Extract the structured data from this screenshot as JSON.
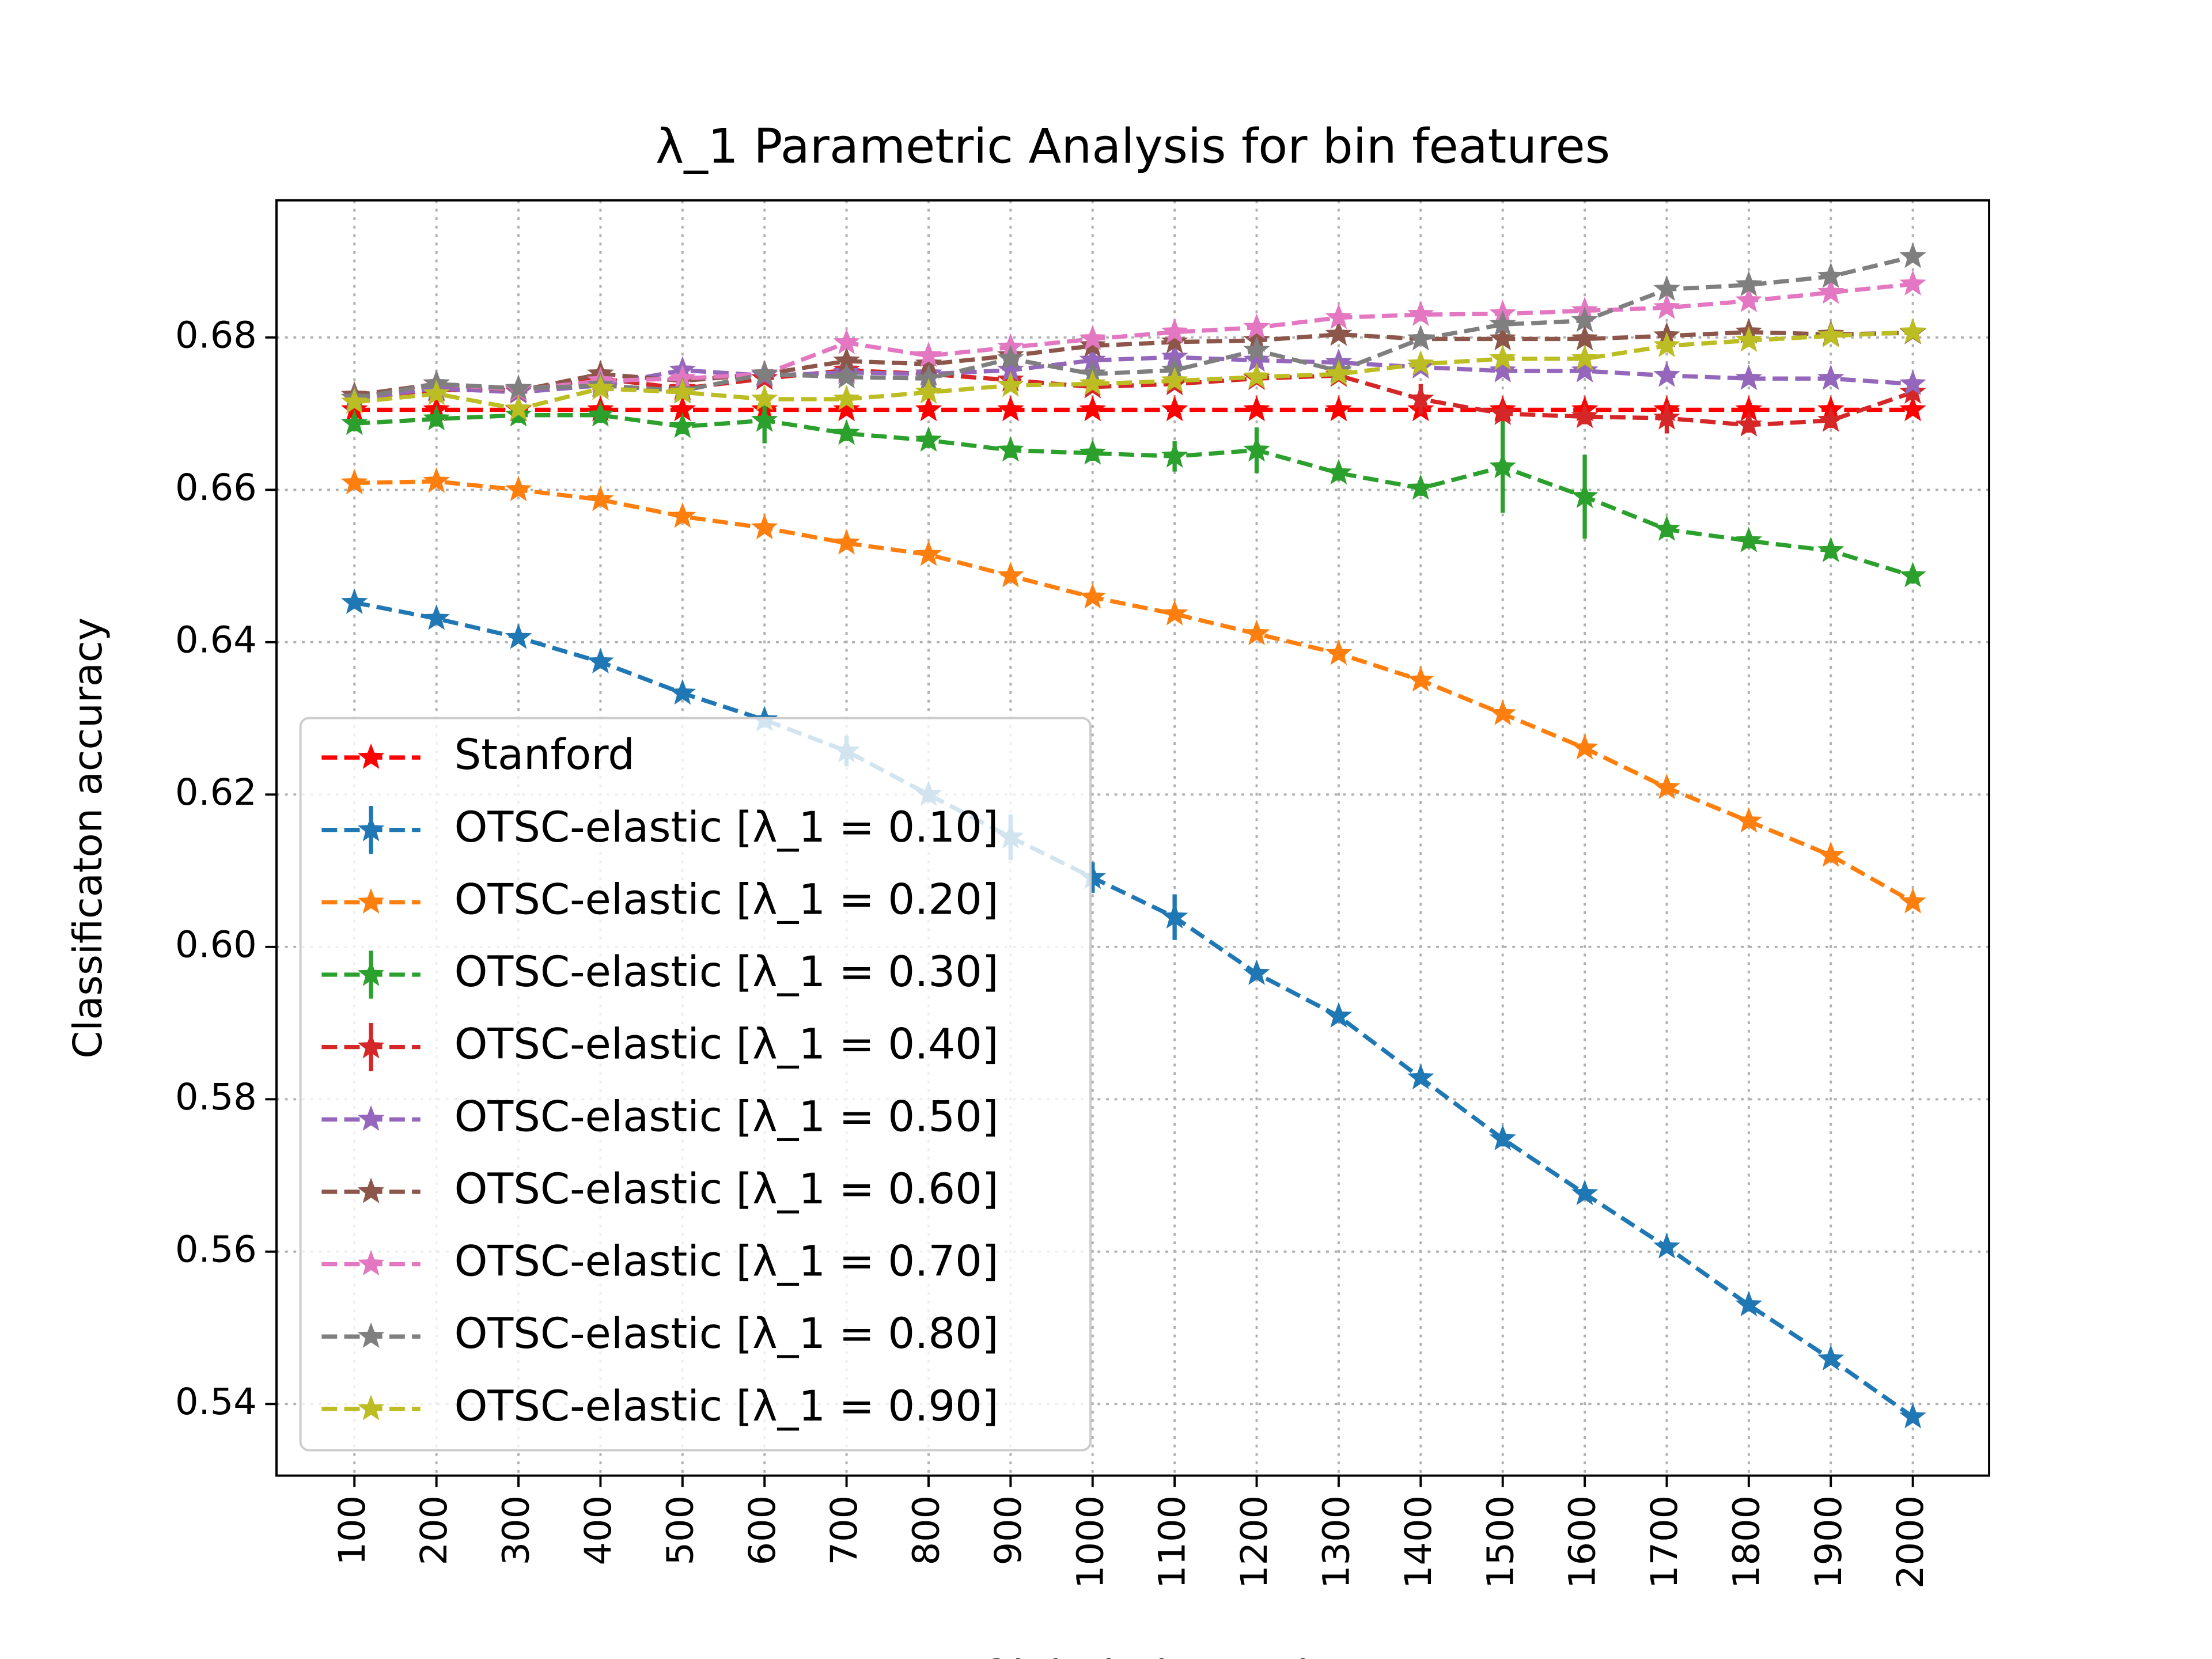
{
  "chart_data": {
    "type": "line",
    "title": "λ_1 Parametric Analysis for bin features",
    "x_label": "# of labeled samples",
    "y_label": "Classificaton accuracy",
    "x": [
      100,
      200,
      300,
      400,
      500,
      600,
      700,
      800,
      900,
      1000,
      1100,
      1200,
      1300,
      1400,
      1500,
      1600,
      1700,
      1800,
      1900,
      2000
    ],
    "xlim": [
      5,
      2093
    ],
    "xticks": [
      100,
      200,
      300,
      400,
      500,
      600,
      700,
      800,
      900,
      1000,
      1100,
      1200,
      1300,
      1400,
      1500,
      1600,
      1700,
      1800,
      1900,
      2000
    ],
    "ylim": [
      0.5306,
      0.698
    ],
    "yticks": [
      {
        "value": 0.54,
        "label": "0.54"
      },
      {
        "value": 0.56,
        "label": "0.56"
      },
      {
        "value": 0.58,
        "label": "0.58"
      },
      {
        "value": 0.6,
        "label": "0.60"
      },
      {
        "value": 0.62,
        "label": "0.62"
      },
      {
        "value": 0.64,
        "label": "0.64"
      },
      {
        "value": 0.66,
        "label": "0.66"
      },
      {
        "value": 0.68,
        "label": "0.68"
      }
    ],
    "grid": true,
    "legend": "lower left",
    "series": [
      {
        "name": "Stanford",
        "color": "#ff0000",
        "values": [
          0.6705,
          0.6705,
          0.6705,
          0.6705,
          0.6705,
          0.6705,
          0.6705,
          0.6705,
          0.6705,
          0.6705,
          0.6705,
          0.6705,
          0.6705,
          0.6705,
          0.6705,
          0.6705,
          0.6705,
          0.6705,
          0.6705,
          0.6705
        ]
      },
      {
        "name": "OTSC-elastic [λ_1 = 0.10]",
        "color": "#1f77b4",
        "values": [
          0.6452,
          0.6431,
          0.6406,
          0.6374,
          0.6333,
          0.6298,
          0.6257,
          0.62,
          0.6144,
          0.6091,
          0.6039,
          0.5965,
          0.5909,
          0.5828,
          0.5748,
          0.5676,
          0.5606,
          0.553,
          0.5459,
          0.5383
        ],
        "errors": [
          0.0005,
          0.0005,
          0.0005,
          0.0005,
          0.0005,
          0.001,
          0.002,
          0.001,
          0.003,
          0.002,
          0.003,
          0.0005,
          0.0005,
          0.0005,
          0.001,
          0.0005,
          0.0005,
          0.0005,
          0.0005,
          0.0005
        ]
      },
      {
        "name": "OTSC-elastic [λ_1 = 0.20]",
        "color": "#ff7f0e",
        "values": [
          0.6609,
          0.6611,
          0.66,
          0.6587,
          0.6565,
          0.655,
          0.653,
          0.6515,
          0.6487,
          0.6459,
          0.6437,
          0.6411,
          0.6385,
          0.635,
          0.6306,
          0.6261,
          0.6209,
          0.6165,
          0.612,
          0.6059
        ]
      },
      {
        "name": "OTSC-elastic [λ_1 = 0.30]",
        "color": "#2ca02c",
        "values": [
          0.6687,
          0.6693,
          0.6698,
          0.6698,
          0.6683,
          0.6691,
          0.6674,
          0.6665,
          0.6652,
          0.6648,
          0.6644,
          0.6652,
          0.6622,
          0.6602,
          0.663,
          0.6591,
          0.6548,
          0.6533,
          0.652,
          0.6487
        ],
        "errors": [
          0.001,
          0.001,
          0.001,
          0.001,
          0.001,
          0.003,
          0.001,
          0.001,
          0.001,
          0.001,
          0.002,
          0.003,
          0.001,
          0.001,
          0.006,
          0.0055,
          0.001,
          0.001,
          0.001,
          0.001
        ]
      },
      {
        "name": "OTSC-elastic [λ_1 = 0.40]",
        "color": "#d62728",
        "values": [
          0.672,
          0.6731,
          0.6731,
          0.6746,
          0.6733,
          0.6746,
          0.6757,
          0.6752,
          0.6744,
          0.6735,
          0.6739,
          0.6746,
          0.675,
          0.6719,
          0.67,
          0.6696,
          0.6694,
          0.6685,
          0.6691,
          0.6728
        ],
        "errors": [
          0.0005,
          0.0005,
          0.0005,
          0.0005,
          0.0005,
          0.0005,
          0.0005,
          0.0005,
          0.0005,
          0.0005,
          0.0005,
          0.0005,
          0.0005,
          0.002,
          0.001,
          0.001,
          0.002,
          0.001,
          0.001,
          0.001
        ]
      },
      {
        "name": "OTSC-elastic [λ_1 = 0.50]",
        "color": "#9467bd",
        "values": [
          0.672,
          0.6733,
          0.6728,
          0.6737,
          0.6757,
          0.675,
          0.6754,
          0.6752,
          0.6757,
          0.677,
          0.6774,
          0.677,
          0.6767,
          0.6761,
          0.6756,
          0.6756,
          0.675,
          0.6746,
          0.6746,
          0.6739
        ]
      },
      {
        "name": "OTSC-elastic [λ_1 = 0.60]",
        "color": "#8c564b",
        "values": [
          0.6724,
          0.6739,
          0.673,
          0.6752,
          0.6743,
          0.6752,
          0.6769,
          0.6765,
          0.6776,
          0.6789,
          0.6794,
          0.6796,
          0.6804,
          0.6798,
          0.6798,
          0.6798,
          0.6802,
          0.6807,
          0.6804,
          0.6806
        ]
      },
      {
        "name": "OTSC-elastic [λ_1 = 0.70]",
        "color": "#e377c2",
        "values": [
          0.672,
          0.6739,
          0.6731,
          0.6743,
          0.6746,
          0.6752,
          0.6793,
          0.6776,
          0.6787,
          0.6798,
          0.6807,
          0.6813,
          0.6826,
          0.683,
          0.6831,
          0.6835,
          0.6839,
          0.6848,
          0.6859,
          0.687
        ]
      },
      {
        "name": "OTSC-elastic [λ_1 = 0.80]",
        "color": "#7f7f7f",
        "values": [
          0.672,
          0.6739,
          0.6733,
          0.6737,
          0.673,
          0.6752,
          0.6748,
          0.6746,
          0.6772,
          0.6752,
          0.6757,
          0.6783,
          0.6756,
          0.6798,
          0.6817,
          0.6822,
          0.6863,
          0.6869,
          0.688,
          0.6906
        ]
      },
      {
        "name": "OTSC-elastic [λ_1 = 0.90]",
        "color": "#bcbd22",
        "values": [
          0.6715,
          0.6726,
          0.6706,
          0.6733,
          0.6728,
          0.6719,
          0.6719,
          0.6728,
          0.6737,
          0.6739,
          0.6743,
          0.6748,
          0.6752,
          0.6765,
          0.6772,
          0.6772,
          0.6789,
          0.6796,
          0.6802,
          0.6807
        ]
      }
    ]
  }
}
